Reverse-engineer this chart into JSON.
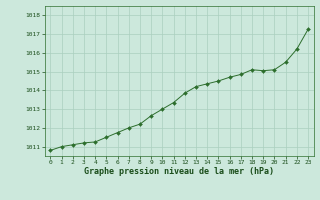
{
  "title": "Graphe pression niveau de la mer (hPa)",
  "x_values": [
    0,
    1,
    2,
    3,
    4,
    5,
    6,
    7,
    8,
    9,
    10,
    11,
    12,
    13,
    14,
    15,
    16,
    17,
    18,
    19,
    20,
    21,
    22,
    23
  ],
  "y_values": [
    1010.8,
    1011.0,
    1011.1,
    1011.2,
    1011.25,
    1011.5,
    1011.75,
    1012.0,
    1012.2,
    1012.65,
    1013.0,
    1013.35,
    1013.85,
    1014.2,
    1014.35,
    1014.5,
    1014.7,
    1014.85,
    1015.1,
    1015.05,
    1015.1,
    1015.5,
    1016.2,
    1017.25
  ],
  "ylim_min": 1010.5,
  "ylim_max": 1018.5,
  "yticks": [
    1011,
    1012,
    1013,
    1014,
    1015,
    1016,
    1017,
    1018
  ],
  "xticks": [
    0,
    1,
    2,
    3,
    4,
    5,
    6,
    7,
    8,
    9,
    10,
    11,
    12,
    13,
    14,
    15,
    16,
    17,
    18,
    19,
    20,
    21,
    22,
    23
  ],
  "line_color": "#2d6e2d",
  "marker_color": "#2d6e2d",
  "bg_color": "#cce8dc",
  "grid_color": "#aacfbf",
  "title_color": "#1a4d1a",
  "tick_color": "#1a4d1a",
  "spine_color": "#2d6e2d"
}
